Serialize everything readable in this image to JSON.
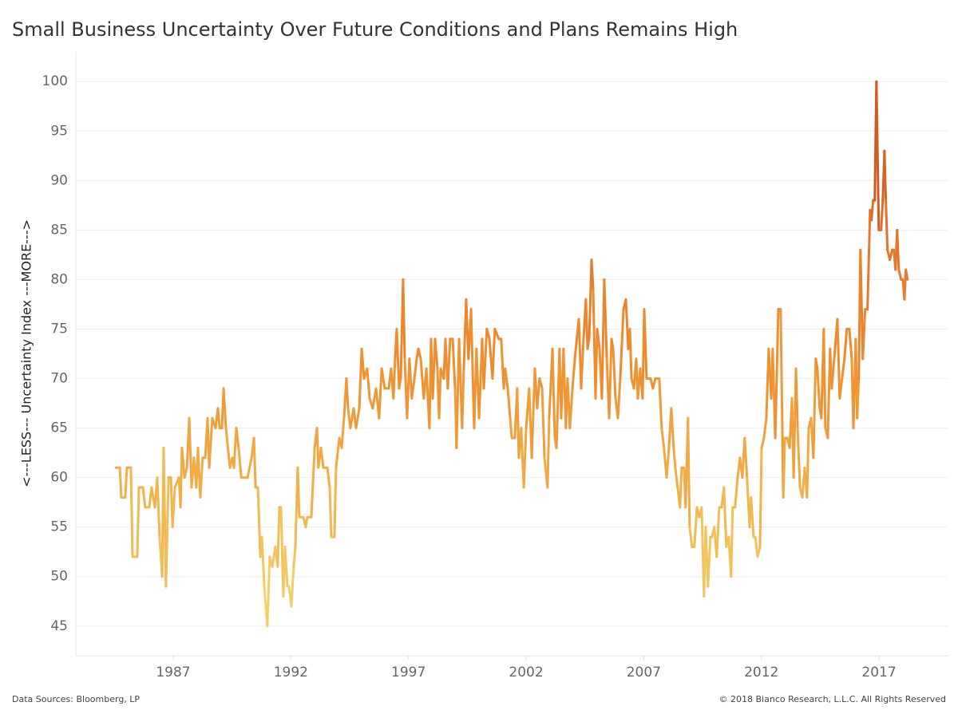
{
  "chart_data": {
    "type": "line",
    "title": "Small Business Uncertainty Over Future Conditions and Plans Remains High",
    "y_label": "<---LESS--- Uncertainty Index ---MORE--->",
    "source": "Data Sources: Bloomberg, LP",
    "copyright": "© 2018 Bianco Research, L.L.C. All Rights Reserved",
    "xlim": [
      1982.86,
      2019.95
    ],
    "xticks": [
      1987,
      1992,
      1997,
      2002,
      2007,
      2012,
      2017
    ],
    "ylim": [
      42,
      103
    ],
    "yticks": [
      45,
      50,
      55,
      60,
      65,
      70,
      75,
      80,
      85,
      90,
      95,
      100
    ],
    "grid": true,
    "color_scale": [
      "#f4d874",
      "#f1b14a",
      "#ee8c2e",
      "#e2702a",
      "#c0451c"
    ],
    "x": [
      1984.56,
      1984.73,
      1984.79,
      1984.96,
      1985.03,
      1985.2,
      1985.27,
      1985.47,
      1985.54,
      1985.71,
      1985.81,
      1985.98,
      1986.08,
      1986.22,
      1986.32,
      1986.42,
      1986.53,
      1986.59,
      1986.69,
      1986.8,
      1986.9,
      1986.97,
      1987.07,
      1987.24,
      1987.31,
      1987.37,
      1987.48,
      1987.58,
      1987.68,
      1987.78,
      1987.88,
      1987.98,
      1988.05,
      1988.15,
      1988.25,
      1988.36,
      1988.46,
      1988.53,
      1988.66,
      1988.8,
      1988.9,
      1988.97,
      1989.07,
      1989.14,
      1989.24,
      1989.41,
      1989.51,
      1989.58,
      1989.68,
      1989.78,
      1989.89,
      1990.16,
      1990.33,
      1990.43,
      1990.5,
      1990.6,
      1990.7,
      1990.77,
      1990.87,
      1991.0,
      1991.1,
      1991.21,
      1991.34,
      1991.44,
      1991.51,
      1991.58,
      1991.68,
      1991.75,
      1991.85,
      1991.92,
      1992.02,
      1992.12,
      1992.19,
      1992.29,
      1992.36,
      1992.53,
      1992.63,
      1992.7,
      1992.87,
      1993.01,
      1993.11,
      1993.17,
      1993.28,
      1993.38,
      1993.55,
      1993.65,
      1993.72,
      1993.85,
      1993.92,
      1994.06,
      1994.16,
      1994.26,
      1994.36,
      1994.43,
      1994.53,
      1994.67,
      1994.77,
      1994.91,
      1995.01,
      1995.11,
      1995.24,
      1995.35,
      1995.48,
      1995.62,
      1995.75,
      1995.86,
      1995.99,
      1996.16,
      1996.26,
      1996.36,
      1996.43,
      1996.5,
      1996.6,
      1996.67,
      1996.77,
      1996.84,
      1996.94,
      1997.04,
      1997.14,
      1997.25,
      1997.35,
      1997.42,
      1997.52,
      1997.65,
      1997.76,
      1997.89,
      1997.96,
      1998.03,
      1998.13,
      1998.23,
      1998.3,
      1998.37,
      1998.5,
      1998.57,
      1998.67,
      1998.77,
      1998.88,
      1998.98,
      1999.04,
      1999.15,
      1999.28,
      1999.35,
      1999.45,
      1999.55,
      1999.66,
      1999.79,
      1999.89,
      2000.0,
      2000.13,
      2000.2,
      2000.33,
      2000.44,
      2000.57,
      2000.67,
      2000.84,
      2000.94,
      2001.05,
      2001.11,
      2001.22,
      2001.32,
      2001.39,
      2001.52,
      2001.62,
      2001.69,
      2001.79,
      2001.9,
      2002.0,
      2002.13,
      2002.24,
      2002.37,
      2002.47,
      2002.57,
      2002.68,
      2002.78,
      2002.91,
      2002.98,
      2003.12,
      2003.22,
      2003.29,
      2003.42,
      2003.49,
      2003.59,
      2003.69,
      2003.76,
      2003.86,
      2003.97,
      2004.07,
      2004.24,
      2004.34,
      2004.44,
      2004.54,
      2004.61,
      2004.68,
      2004.78,
      2004.85,
      2004.95,
      2005.02,
      2005.12,
      2005.22,
      2005.32,
      2005.43,
      2005.53,
      2005.63,
      2005.7,
      2005.8,
      2005.9,
      2006.0,
      2006.14,
      2006.24,
      2006.34,
      2006.41,
      2006.48,
      2006.58,
      2006.68,
      2006.75,
      2006.85,
      2006.95,
      2007.02,
      2007.12,
      2007.29,
      2007.39,
      2007.49,
      2007.66,
      2007.76,
      2007.86,
      2007.97,
      2008.07,
      2008.17,
      2008.27,
      2008.34,
      2008.44,
      2008.54,
      2008.61,
      2008.71,
      2008.78,
      2008.88,
      2008.95,
      2009.05,
      2009.15,
      2009.26,
      2009.36,
      2009.46,
      2009.56,
      2009.63,
      2009.73,
      2009.83,
      2009.9,
      2010.0,
      2010.1,
      2010.21,
      2010.31,
      2010.41,
      2010.51,
      2010.61,
      2010.71,
      2010.78,
      2010.88,
      2010.99,
      2011.09,
      2011.19,
      2011.29,
      2011.39,
      2011.5,
      2011.56,
      2011.67,
      2011.74,
      2011.84,
      2011.94,
      2012.01,
      2012.11,
      2012.21,
      2012.31,
      2012.42,
      2012.48,
      2012.59,
      2012.72,
      2012.82,
      2012.93,
      2013.0,
      2013.1,
      2013.2,
      2013.3,
      2013.37,
      2013.47,
      2013.54,
      2013.64,
      2013.74,
      2013.84,
      2013.94,
      2014.01,
      2014.11,
      2014.21,
      2014.31,
      2014.38,
      2014.48,
      2014.55,
      2014.65,
      2014.72,
      2014.82,
      2014.92,
      2014.99,
      2015.13,
      2015.23,
      2015.33,
      2015.43,
      2015.53,
      2015.63,
      2015.74,
      2015.84,
      2015.91,
      2016.01,
      2016.07,
      2016.14,
      2016.21,
      2016.31,
      2016.41,
      2016.51,
      2016.62,
      2016.68,
      2016.75,
      2016.82,
      2016.89,
      2016.99,
      2017.09,
      2017.16,
      2017.23,
      2017.29,
      2017.36,
      2017.46,
      2017.56,
      2017.63,
      2017.7,
      2017.77,
      2017.84,
      2017.94,
      2018.01,
      2018.08,
      2018.14,
      2018.21
    ],
    "values": [
      61,
      61,
      58,
      58,
      61,
      61,
      52,
      52,
      59,
      59,
      57,
      57,
      59,
      57,
      60,
      54,
      50,
      63,
      49,
      60,
      60,
      55,
      59,
      60,
      57,
      63,
      60,
      61,
      66,
      59,
      62,
      59,
      63,
      58,
      62,
      62,
      66,
      61,
      66,
      65,
      67,
      65,
      65,
      69,
      65,
      61,
      62,
      61,
      65,
      63,
      60,
      60,
      62,
      64,
      59,
      59,
      52,
      54,
      49,
      45,
      52,
      51,
      53,
      51,
      57,
      57,
      48,
      53,
      49,
      49,
      47,
      51,
      53,
      61,
      56,
      56,
      55,
      56,
      56,
      63,
      65,
      61,
      63,
      61,
      61,
      59,
      54,
      54,
      61,
      64,
      63,
      66,
      70,
      67,
      65,
      67,
      65,
      67,
      73,
      70,
      71,
      68,
      67,
      69,
      66,
      71,
      69,
      69,
      71,
      68,
      72,
      75,
      69,
      70,
      80,
      72,
      66,
      72,
      68,
      70,
      72,
      73,
      72,
      68,
      71,
      65,
      74,
      68,
      74,
      71,
      66,
      71,
      70,
      74,
      69,
      74,
      74,
      69,
      63,
      74,
      65,
      71,
      78,
      72,
      77,
      65,
      73,
      66,
      74,
      69,
      75,
      74,
      70,
      75,
      74,
      74,
      69,
      71,
      69,
      66,
      64,
      64,
      69,
      62,
      65,
      59,
      65,
      69,
      62,
      71,
      67,
      70,
      69,
      62,
      59,
      66,
      73,
      64,
      63,
      73,
      66,
      73,
      65,
      70,
      65,
      69,
      72,
      76,
      69,
      74,
      78,
      73,
      74,
      82,
      79,
      68,
      75,
      73,
      68,
      80,
      72,
      66,
      74,
      73,
      68,
      66,
      70,
      77,
      78,
      73,
      75,
      70,
      69,
      72,
      68,
      71,
      68,
      77,
      70,
      70,
      69,
      70,
      70,
      65,
      63,
      60,
      63,
      67,
      63,
      61,
      59,
      57,
      61,
      61,
      57,
      66,
      55,
      53,
      53,
      57,
      56,
      57,
      48,
      55,
      49,
      54,
      54,
      55,
      52,
      57,
      57,
      59,
      53,
      54,
      50,
      57,
      57,
      60,
      62,
      60,
      64,
      60,
      55,
      58,
      54,
      54,
      52,
      53,
      63,
      64,
      66,
      73,
      68,
      73,
      64,
      77,
      77,
      58,
      64,
      64,
      63,
      68,
      60,
      71,
      65,
      59,
      58,
      61,
      58,
      65,
      66,
      62,
      72,
      71,
      67,
      66,
      75,
      65,
      64,
      73,
      69,
      73,
      76,
      68,
      70,
      72,
      75,
      75,
      72,
      65,
      74,
      66,
      70,
      83,
      72,
      77,
      77,
      87,
      86,
      88,
      88,
      100,
      85,
      85,
      88,
      93,
      88,
      83,
      82,
      83,
      83,
      81,
      85,
      81,
      80,
      80,
      78,
      81,
      80
    ]
  }
}
